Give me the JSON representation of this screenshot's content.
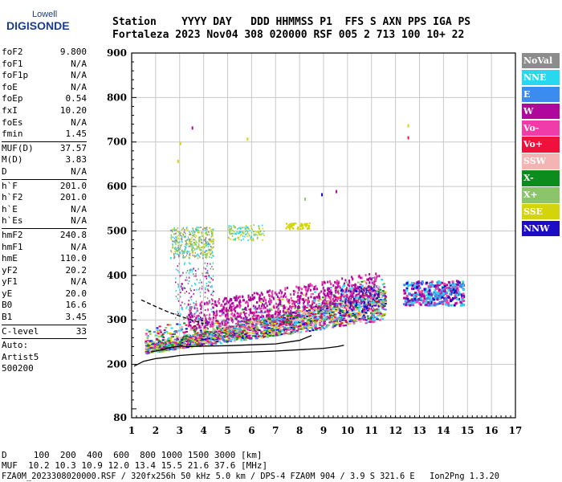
{
  "logo": {
    "line1": "Lowell",
    "line2": "DIGISONDE"
  },
  "header": {
    "labels": "Station    YYYY DAY   DDD HHMMSS P1  FFS S AXN PPS IGA PS",
    "values": "Fortaleza 2023 Nov04 308 020000 RSF 005 2 713 100 10+ 22"
  },
  "params": [
    {
      "name": "foF2",
      "value": "9.800"
    },
    {
      "name": "foF1",
      "value": "N/A"
    },
    {
      "name": "foF1p",
      "value": "N/A"
    },
    {
      "name": "foE",
      "value": "N/A"
    },
    {
      "name": "foEp",
      "value": "0.54"
    },
    {
      "name": "fxI",
      "value": "10.20"
    },
    {
      "name": "foEs",
      "value": "N/A"
    },
    {
      "name": "fmin",
      "value": "1.45",
      "sep": true
    },
    {
      "name": "MUF(D)",
      "value": "37.57"
    },
    {
      "name": "M(D)",
      "value": "3.83"
    },
    {
      "name": "D",
      "value": "N/A",
      "sep": true
    },
    {
      "name": "h`F",
      "value": "201.0"
    },
    {
      "name": "h`F2",
      "value": "201.0"
    },
    {
      "name": "h`E",
      "value": "N/A"
    },
    {
      "name": "h`Es",
      "value": "N/A",
      "sep": true
    },
    {
      "name": "hmF2",
      "value": "240.8"
    },
    {
      "name": "hmF1",
      "value": "N/A"
    },
    {
      "name": "hmE",
      "value": "110.0"
    },
    {
      "name": "yF2",
      "value": "20.2"
    },
    {
      "name": "yF1",
      "value": "N/A"
    },
    {
      "name": "yE",
      "value": "20.0"
    },
    {
      "name": "B0",
      "value": "16.6"
    },
    {
      "name": "B1",
      "value": "3.45",
      "sep": true
    },
    {
      "name": "C-level",
      "value": "33",
      "sep": true
    },
    {
      "name": "Auto:",
      "value": ""
    },
    {
      "name": "Artist5",
      "value": ""
    },
    {
      "name": "500200",
      "value": ""
    }
  ],
  "legend": [
    {
      "label": "NoVal",
      "color": "#8c8c8c"
    },
    {
      "label": "NNE",
      "color": "#27d8f0"
    },
    {
      "label": "E",
      "color": "#3a8cf0"
    },
    {
      "label": "W",
      "color": "#b0089c"
    },
    {
      "label": "Vo-",
      "color": "#f03ca8"
    },
    {
      "label": "Vo+",
      "color": "#f0103c"
    },
    {
      "label": "SSW",
      "color": "#f4b4b4"
    },
    {
      "label": "X-",
      "color": "#0c8c1c"
    },
    {
      "label": "X+",
      "color": "#8cc46c"
    },
    {
      "label": "SSE",
      "color": "#d4d40c"
    },
    {
      "label": "NNW",
      "color": "#1c0cc4"
    }
  ],
  "chart_data": {
    "type": "scatter",
    "xlim": [
      1,
      17
    ],
    "ylim": [
      80,
      900
    ],
    "x_ticks": [
      1,
      2,
      3,
      4,
      5,
      6,
      7,
      8,
      9,
      10,
      11,
      12,
      13,
      14,
      15,
      16,
      17
    ],
    "y_ticks": [
      80,
      200,
      300,
      400,
      500,
      600,
      700,
      800,
      900
    ],
    "grid": true,
    "trace_series": [
      {
        "name": "bottom",
        "x": [
          1.1,
          1.5,
          2.0,
          2.5,
          3.0,
          3.5,
          4.0,
          5.0,
          6.0,
          7.0,
          8.0,
          9.0,
          9.6,
          9.85
        ],
        "y": [
          196,
          207,
          213,
          216,
          220,
          222,
          224,
          226,
          228,
          230,
          233,
          236,
          240,
          243
        ]
      },
      {
        "name": "inner",
        "x": [
          1.8,
          2.2,
          2.6,
          3.0,
          3.5,
          4.0,
          5.0,
          6.0,
          7.0,
          8.0,
          8.5
        ],
        "y": [
          228,
          232,
          238,
          241,
          240,
          241,
          242,
          244,
          246,
          254,
          265
        ]
      },
      {
        "name": "dashed",
        "x": [
          1.4,
          2.0,
          2.6,
          3.2,
          3.6,
          4.0
        ],
        "y": [
          345,
          330,
          316,
          305,
          298,
          292
        ]
      }
    ]
  },
  "footer": {
    "dist": "D     100  200  400  600  800 1000 1500 3000 [km]",
    "muf": "MUF  10.2 10.3 10.9 12.0 13.4 15.5 21.6 37.6 [MHz]",
    "file": "FZA0M_2023308020000.RSF / 320fx256h 50 kHz 5.0 km / DPS-4 FZA0M 904 / 3.9 S 321.6 E   Ion2Png 1.3.20"
  }
}
